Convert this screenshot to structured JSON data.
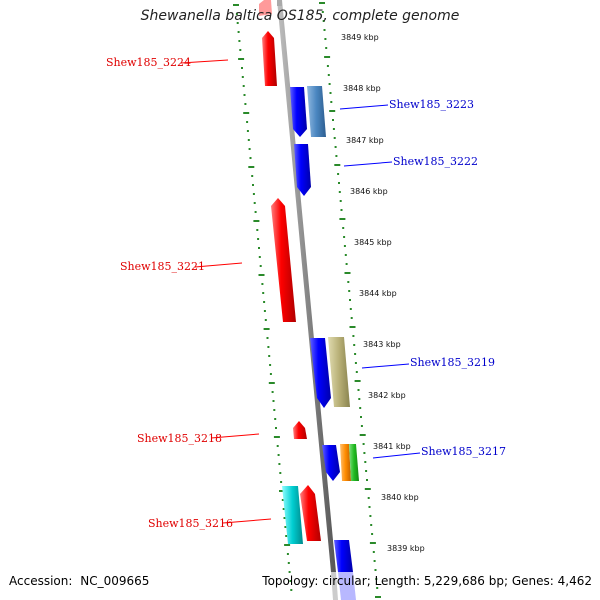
{
  "title": "Shewanella baltica OS185, complete genome",
  "footer": {
    "accession_label": "Accession:",
    "accession": "NC_009665",
    "topology_label": "Topology:",
    "topology": "circular;",
    "length_label": "Length:",
    "length": "5,229,686 bp;",
    "genes_label": "Genes:",
    "genes": "4,462"
  },
  "kbp_ticks": [
    "3849 kbp",
    "3848 kbp",
    "3847 kbp",
    "3846 kbp",
    "3845 kbp",
    "3844 kbp",
    "3843 kbp",
    "3842 kbp",
    "3841 kbp",
    "3840 kbp",
    "3839 kbp"
  ],
  "genes_left": [
    {
      "label": "Shew185_3224",
      "color": "#ff0000"
    },
    {
      "label": "Shew185_3221",
      "color": "#ff0000"
    },
    {
      "label": "Shew185_3218",
      "color": "#ff0000"
    },
    {
      "label": "Shew185_3216",
      "color": "#ff0000"
    }
  ],
  "genes_right": [
    {
      "label": "Shew185_3223",
      "color": "#0000ff"
    },
    {
      "label": "Shew185_3222",
      "color": "#0000ff"
    },
    {
      "label": "Shew185_3219",
      "color": "#0000ff"
    },
    {
      "label": "Shew185_3217",
      "color": "#0000ff"
    }
  ],
  "colors": {
    "forward_gene": "#ff0000",
    "reverse_gene": "#0000ff",
    "steelblue_gene": "#4a86c0",
    "khaki_gene": "#b8b077",
    "orange_gene": "#ff8c00",
    "green_gene": "#22bb22",
    "cyan_gene": "#00ced1",
    "tick_green": "#2a8a2a",
    "backbone": "#888888"
  }
}
